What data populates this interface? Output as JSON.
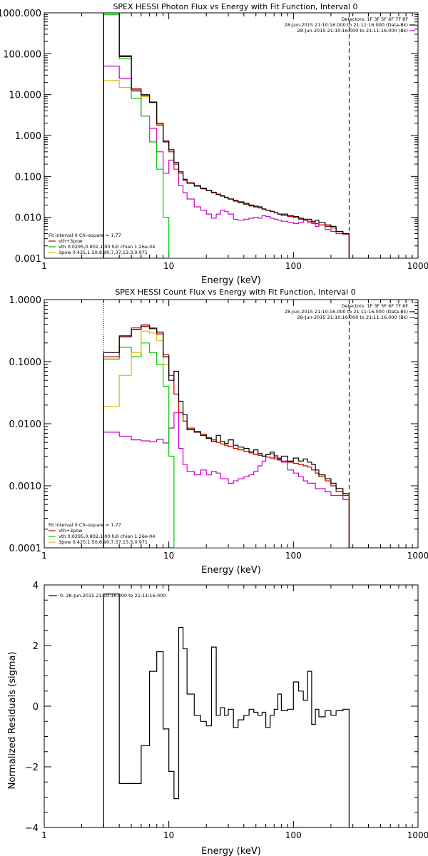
{
  "chart_data": [
    {
      "type": "line",
      "title": "SPEX HESSI Photon Flux vs Energy with Fit Function, Interval 0",
      "xlabel": "Energy (keV)",
      "ylabel": "",
      "xscale": "log",
      "yscale": "log",
      "xlim": [
        1,
        1000
      ],
      "ylim": [
        0.001,
        1000
      ],
      "xticks": [
        "1",
        "10",
        "100",
        "1000"
      ],
      "yticks": [
        "1000.000",
        "100.000",
        "10.000",
        "1.000",
        "0.100",
        "0.010",
        "0.001"
      ],
      "legend_top": [
        "Detectors: 1F 3F 5F 6F 7F 8F",
        "28-Jun-2015 21:10:16.000 to 21:11:16.000 (Data-Bk)",
        "28-Jun-2015 21:10:16.000 to 21:11:16.000 (Bk)"
      ],
      "legend_top_colors": [
        "#000000",
        "#000000",
        "#cc00cc"
      ],
      "legend_bottom": [
        "Fit Interval 0   Chi-square = 1.77",
        "vth+3pow",
        "vth 0.0295,0.802,1.00  full chian 1.26e-04",
        "3pow 0.425,1.50,8.90,7.37,13.3,0.971"
      ],
      "legend_bottom_colors": [
        "#000000",
        "#cc0000",
        "#00cc00",
        "#ddbb00"
      ],
      "dashed_line_x": 280,
      "dotted_line_x": 3,
      "edges": [
        3,
        4,
        5,
        6,
        7,
        8,
        9,
        10,
        11,
        12,
        13,
        14,
        16,
        18,
        20,
        22,
        24,
        26,
        28,
        30,
        33,
        36,
        40,
        44,
        48,
        52,
        56,
        60,
        65,
        70,
        75,
        80,
        90,
        100,
        110,
        120,
        130,
        140,
        150,
        160,
        180,
        200,
        220,
        250,
        280
      ],
      "series": [
        {
          "name": "data",
          "color": "#000000",
          "values": [
            1000,
            85,
            13,
            10,
            6.5,
            2.0,
            0.7,
            0.45,
            0.22,
            0.13,
            0.085,
            0.068,
            0.058,
            0.05,
            0.045,
            0.04,
            0.036,
            0.033,
            0.03,
            0.028,
            0.025,
            0.023,
            0.021,
            0.019,
            0.018,
            0.018,
            0.016,
            0.015,
            0.014,
            0.013,
            0.012,
            0.012,
            0.011,
            0.0105,
            0.0095,
            0.009,
            0.009,
            0.008,
            0.0085,
            0.0075,
            0.0065,
            0.006,
            0.0045,
            0.004
          ]
        },
        {
          "name": "vth+3pow",
          "color": "#cc0000",
          "values": [
            1000,
            90,
            14,
            9.5,
            6.6,
            1.8,
            0.75,
            0.4,
            0.2,
            0.12,
            0.08,
            0.07,
            0.06,
            0.052,
            0.046,
            0.041,
            0.037,
            0.034,
            0.031,
            0.028,
            0.026,
            0.024,
            0.022,
            0.02,
            0.019,
            0.017,
            0.016,
            0.015,
            0.014,
            0.013,
            0.012,
            0.011,
            0.0105,
            0.0098,
            0.009,
            0.0085,
            0.008,
            0.0075,
            0.007,
            0.0065,
            0.006,
            0.0055,
            0.0045,
            0.004
          ]
        },
        {
          "name": "vth",
          "color": "#00cc00",
          "values": [
            900,
            75,
            8,
            3,
            0.7,
            0.15,
            0.01,
            0.001,
            0.001,
            0.001,
            0.001,
            0.001,
            0.001,
            0.001,
            0.001,
            0.001,
            0.001,
            0.001,
            0.001,
            0.001,
            0.001,
            0.001,
            0.001,
            0.001,
            0.001,
            0.001,
            0.001,
            0.001,
            0.001,
            0.001,
            0.001,
            0.001,
            0.001,
            0.001,
            0.001,
            0.001,
            0.001,
            0.001,
            0.001,
            0.001,
            0.001,
            0.001,
            0.001,
            0.001
          ]
        },
        {
          "name": "3pow",
          "color": "#ddbb00",
          "values": [
            22,
            15,
            12,
            9,
            6.3,
            1.9,
            0.7,
            0.4,
            0.2,
            0.12,
            0.08,
            0.07,
            0.06,
            0.052,
            0.046,
            0.041,
            0.037,
            0.034,
            0.031,
            0.028,
            0.026,
            0.024,
            0.022,
            0.02,
            0.019,
            0.017,
            0.016,
            0.015,
            0.014,
            0.013,
            0.012,
            0.011,
            0.0105,
            0.0098,
            0.009,
            0.0085,
            0.008,
            0.0075,
            0.007,
            0.0065,
            0.006,
            0.0055,
            0.0045,
            0.004
          ]
        },
        {
          "name": "Bk",
          "color": "#cc00cc",
          "values": [
            50,
            25,
            12,
            3,
            1.5,
            0.4,
            0.12,
            0.25,
            0.15,
            0.06,
            0.04,
            0.028,
            0.018,
            0.015,
            0.012,
            0.0095,
            0.012,
            0.015,
            0.014,
            0.012,
            0.009,
            0.0085,
            0.009,
            0.0095,
            0.01,
            0.0095,
            0.011,
            0.0105,
            0.0095,
            0.009,
            0.0085,
            0.008,
            0.0075,
            0.007,
            0.0075,
            0.0085,
            0.0075,
            0.007,
            0.006,
            0.0065,
            0.005,
            0.0045,
            0.004,
            0.0038
          ]
        }
      ]
    },
    {
      "type": "line",
      "title": "SPEX HESSI Count Flux vs Energy with Fit Function, Interval 0",
      "xlabel": "Energy (keV)",
      "ylabel": "",
      "xscale": "log",
      "yscale": "log",
      "xlim": [
        1,
        1000
      ],
      "ylim": [
        0.0001,
        1
      ],
      "xticks": [
        "1",
        "10",
        "100",
        "1000"
      ],
      "yticks": [
        "1.0000",
        "0.1000",
        "0.0100",
        "0.0010",
        "0.0001"
      ],
      "legend_top": [
        "Detectors: 1F 3F 5F 6F 7F 8F",
        "28-Jun-2015 21:10:16.000 to 21:11:16.000 (Data-Bk)",
        "28-Jun-2015 21:10:16.000 to 21:11:16.000 (Bk)"
      ],
      "legend_top_colors": [
        "#000000",
        "#000000",
        "#cc00cc"
      ],
      "legend_bottom": [
        "Fit Interval 0   Chi-square = 1.77",
        "vth+3pow",
        "vth 0.0295,0.802,1.00  full chian 1.26e-04",
        "3pow 0.425,1.50,8.90,7.37,13.3,0.971"
      ],
      "legend_bottom_colors": [
        "#000000",
        "#cc0000",
        "#00cc00",
        "#ddbb00"
      ],
      "dashed_line_x": 280,
      "dotted_line_x": 3,
      "edges": [
        3,
        4,
        5,
        6,
        7,
        8,
        9,
        10,
        11,
        12,
        13,
        14,
        16,
        18,
        20,
        22,
        24,
        26,
        28,
        30,
        33,
        36,
        40,
        44,
        48,
        52,
        56,
        60,
        65,
        70,
        75,
        80,
        90,
        100,
        110,
        120,
        130,
        140,
        150,
        160,
        180,
        200,
        220,
        250,
        280
      ],
      "series": [
        {
          "name": "data",
          "color": "#000000",
          "values": [
            0.14,
            0.26,
            0.33,
            0.39,
            0.34,
            0.3,
            0.12,
            0.05,
            0.07,
            0.023,
            0.014,
            0.008,
            0.0073,
            0.0065,
            0.0058,
            0.0052,
            0.0065,
            0.0052,
            0.0048,
            0.0055,
            0.0045,
            0.0042,
            0.004,
            0.0035,
            0.0038,
            0.0033,
            0.003,
            0.0032,
            0.0035,
            0.0029,
            0.0027,
            0.003,
            0.0025,
            0.0028,
            0.0025,
            0.0027,
            0.0024,
            0.0022,
            0.0018,
            0.0015,
            0.0013,
            0.0011,
            0.0009,
            0.00075
          ]
        },
        {
          "name": "vth+3pow",
          "color": "#cc0000",
          "values": [
            0.12,
            0.25,
            0.35,
            0.37,
            0.35,
            0.28,
            0.13,
            0.06,
            0.03,
            0.015,
            0.011,
            0.0085,
            0.0075,
            0.0068,
            0.006,
            0.0055,
            0.005,
            0.0047,
            0.0045,
            0.0043,
            0.004,
            0.0038,
            0.0036,
            0.0034,
            0.0032,
            0.0031,
            0.003,
            0.0029,
            0.0028,
            0.0027,
            0.0026,
            0.0025,
            0.0024,
            0.0023,
            0.0022,
            0.0021,
            0.002,
            0.0018,
            0.0016,
            0.0014,
            0.0012,
            0.001,
            0.0008,
            0.0007
          ]
        },
        {
          "name": "vth",
          "color": "#00cc00",
          "values": [
            0.11,
            0.17,
            0.12,
            0.2,
            0.14,
            0.09,
            0.04,
            0.003,
            0.0001,
            0.0001,
            0.0001,
            0.0001,
            0.0001,
            0.0001,
            0.0001,
            0.0001,
            0.0001,
            0.0001,
            0.0001,
            0.0001,
            0.0001,
            0.0001,
            0.0001,
            0.0001,
            0.0001,
            0.0001,
            0.0001,
            0.0001,
            0.0001,
            0.0001,
            0.0001,
            0.0001,
            0.0001,
            0.0001,
            0.0001,
            0.0001,
            0.0001,
            0.0001,
            0.0001,
            0.0001,
            0.0001,
            0.0001,
            0.0001,
            0.0001
          ]
        },
        {
          "name": "3pow",
          "color": "#ddbb00",
          "values": [
            0.019,
            0.06,
            0.14,
            0.31,
            0.29,
            0.22,
            0.09,
            0.06,
            0.03,
            0.015,
            0.011,
            0.0085,
            0.0075,
            0.0068,
            0.006,
            0.0055,
            0.005,
            0.0047,
            0.0045,
            0.0043,
            0.004,
            0.0038,
            0.0036,
            0.0034,
            0.0032,
            0.0031,
            0.003,
            0.0029,
            0.0028,
            0.0027,
            0.0026,
            0.0025,
            0.0024,
            0.0023,
            0.0022,
            0.0021,
            0.002,
            0.0018,
            0.0016,
            0.0014,
            0.0012,
            0.001,
            0.0008,
            0.0007
          ]
        },
        {
          "name": "Bk",
          "color": "#cc00cc",
          "values": [
            0.0073,
            0.0063,
            0.0055,
            0.0053,
            0.0051,
            0.0056,
            0.0049,
            0.0085,
            0.015,
            0.004,
            0.0022,
            0.0017,
            0.0015,
            0.0018,
            0.0015,
            0.0017,
            0.0016,
            0.0013,
            0.0013,
            0.0011,
            0.0012,
            0.0013,
            0.0014,
            0.0015,
            0.0017,
            0.0021,
            0.0025,
            0.0032,
            0.0033,
            0.0031,
            0.0028,
            0.0024,
            0.0018,
            0.0016,
            0.0014,
            0.0012,
            0.0011,
            0.0011,
            0.0009,
            0.0009,
            0.0008,
            0.0007,
            0.0007,
            0.0006
          ]
        }
      ]
    },
    {
      "type": "line",
      "title": "",
      "xlabel": "Energy (keV)",
      "ylabel": "Normalized Residuals (sigma)",
      "xscale": "log",
      "yscale": "linear",
      "xlim": [
        1,
        1000
      ],
      "ylim": [
        -4,
        4
      ],
      "xticks": [
        "1",
        "10",
        "100",
        "1000"
      ],
      "yticks": [
        "4",
        "2",
        "0",
        "−2",
        "−4"
      ],
      "legend": [
        "0. 28-Jun-2015 21:10:16.000 to 21:11:16.000"
      ],
      "edges": [
        3,
        4,
        5,
        6,
        7,
        8,
        9,
        10,
        11,
        12,
        13,
        14,
        16,
        18,
        20,
        22,
        24,
        26,
        28,
        30,
        33,
        36,
        40,
        44,
        48,
        52,
        56,
        60,
        65,
        70,
        75,
        80,
        90,
        100,
        110,
        120,
        130,
        140,
        150,
        160,
        180,
        200,
        220,
        250,
        280
      ],
      "series": [
        {
          "name": "",
          "color": "#000000",
          "values": [
            3.7,
            -2.55,
            -2.55,
            -1.3,
            1.15,
            1.8,
            -0.75,
            -2.15,
            -3.05,
            2.6,
            1.9,
            0.4,
            -0.3,
            -0.5,
            -0.65,
            1.95,
            -0.3,
            -0.05,
            -0.3,
            -0.1,
            -0.7,
            -0.45,
            -0.3,
            -0.1,
            -0.2,
            -0.3,
            -0.2,
            -0.7,
            -0.3,
            -0.1,
            0.4,
            -0.15,
            -0.1,
            0.8,
            0.5,
            0.2,
            1.15,
            -0.6,
            -0.1,
            -0.35,
            -0.15,
            -0.3,
            -0.15,
            -0.1
          ]
        }
      ]
    }
  ]
}
